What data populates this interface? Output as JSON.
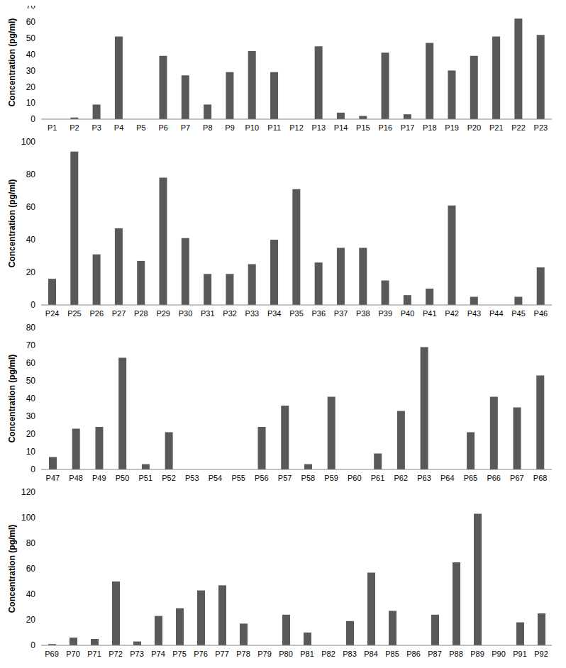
{
  "chart_data": [
    {
      "type": "bar",
      "y_label": "Concentration (pg/ml)",
      "categories": [
        "P1",
        "P2",
        "P3",
        "P4",
        "P5",
        "P6",
        "P7",
        "P8",
        "P9",
        "P10",
        "P11",
        "P12",
        "P13",
        "P14",
        "P15",
        "P16",
        "P17",
        "P18",
        "P19",
        "P20",
        "P21",
        "P22",
        "P23"
      ],
      "values": [
        0,
        1,
        9,
        51,
        0,
        39,
        27,
        9,
        29,
        42,
        29,
        0,
        45,
        4,
        2,
        41,
        3,
        47,
        30,
        39,
        51,
        62,
        52
      ],
      "color": "#595959",
      "ylim": [
        0,
        70
      ],
      "yticks": [
        0,
        10,
        20,
        30,
        40,
        50,
        60,
        70
      ],
      "grid": false
    },
    {
      "type": "bar",
      "y_label": "Concentration (pg/ml)",
      "categories": [
        "P24",
        "P25",
        "P26",
        "P27",
        "P28",
        "P29",
        "P30",
        "P31",
        "P32",
        "P33",
        "P34",
        "P35",
        "P36",
        "P37",
        "P38",
        "P39",
        "P40",
        "P41",
        "P42",
        "P43",
        "P44",
        "P45",
        "P46"
      ],
      "values": [
        16,
        94,
        31,
        47,
        27,
        78,
        41,
        19,
        19,
        25,
        40,
        71,
        26,
        35,
        35,
        15,
        6,
        10,
        61,
        5,
        0,
        5,
        23
      ],
      "color": "#595959",
      "ylim": [
        0,
        100
      ],
      "yticks": [
        0,
        20,
        40,
        60,
        80,
        100
      ],
      "grid": false
    },
    {
      "type": "bar",
      "y_label": "Concentration (pg/ml)",
      "categories": [
        "P47",
        "P48",
        "P49",
        "P50",
        "P51",
        "P52",
        "P53",
        "P54",
        "P55",
        "P56",
        "P57",
        "P58",
        "P59",
        "P60",
        "P61",
        "P62",
        "P63",
        "P64",
        "P65",
        "P66",
        "P67",
        "P68"
      ],
      "values": [
        7,
        23,
        24,
        63,
        3,
        21,
        0,
        0,
        0,
        24,
        36,
        3,
        41,
        0,
        9,
        33,
        69,
        0,
        21,
        41,
        35,
        53
      ],
      "color": "#595959",
      "ylim": [
        0,
        80
      ],
      "yticks": [
        0,
        10,
        20,
        30,
        40,
        50,
        60,
        70,
        80
      ],
      "grid": false
    },
    {
      "type": "bar",
      "y_label": "Concentration (pg/ml)",
      "categories": [
        "P69",
        "P70",
        "P71",
        "P72",
        "P73",
        "P74",
        "P75",
        "P76",
        "P77",
        "P78",
        "P79",
        "P80",
        "P81",
        "P82",
        "P83",
        "P84",
        "P85",
        "P86",
        "P87",
        "P88",
        "P89",
        "P90",
        "P91",
        "P92"
      ],
      "values": [
        1,
        6,
        5,
        50,
        3,
        23,
        29,
        43,
        47,
        17,
        0,
        24,
        10,
        0,
        19,
        57,
        27,
        0,
        24,
        65,
        103,
        0,
        18,
        25
      ],
      "color": "#595959",
      "ylim": [
        0,
        120
      ],
      "yticks": [
        0,
        20,
        40,
        60,
        80,
        100,
        120
      ],
      "grid": false
    }
  ]
}
